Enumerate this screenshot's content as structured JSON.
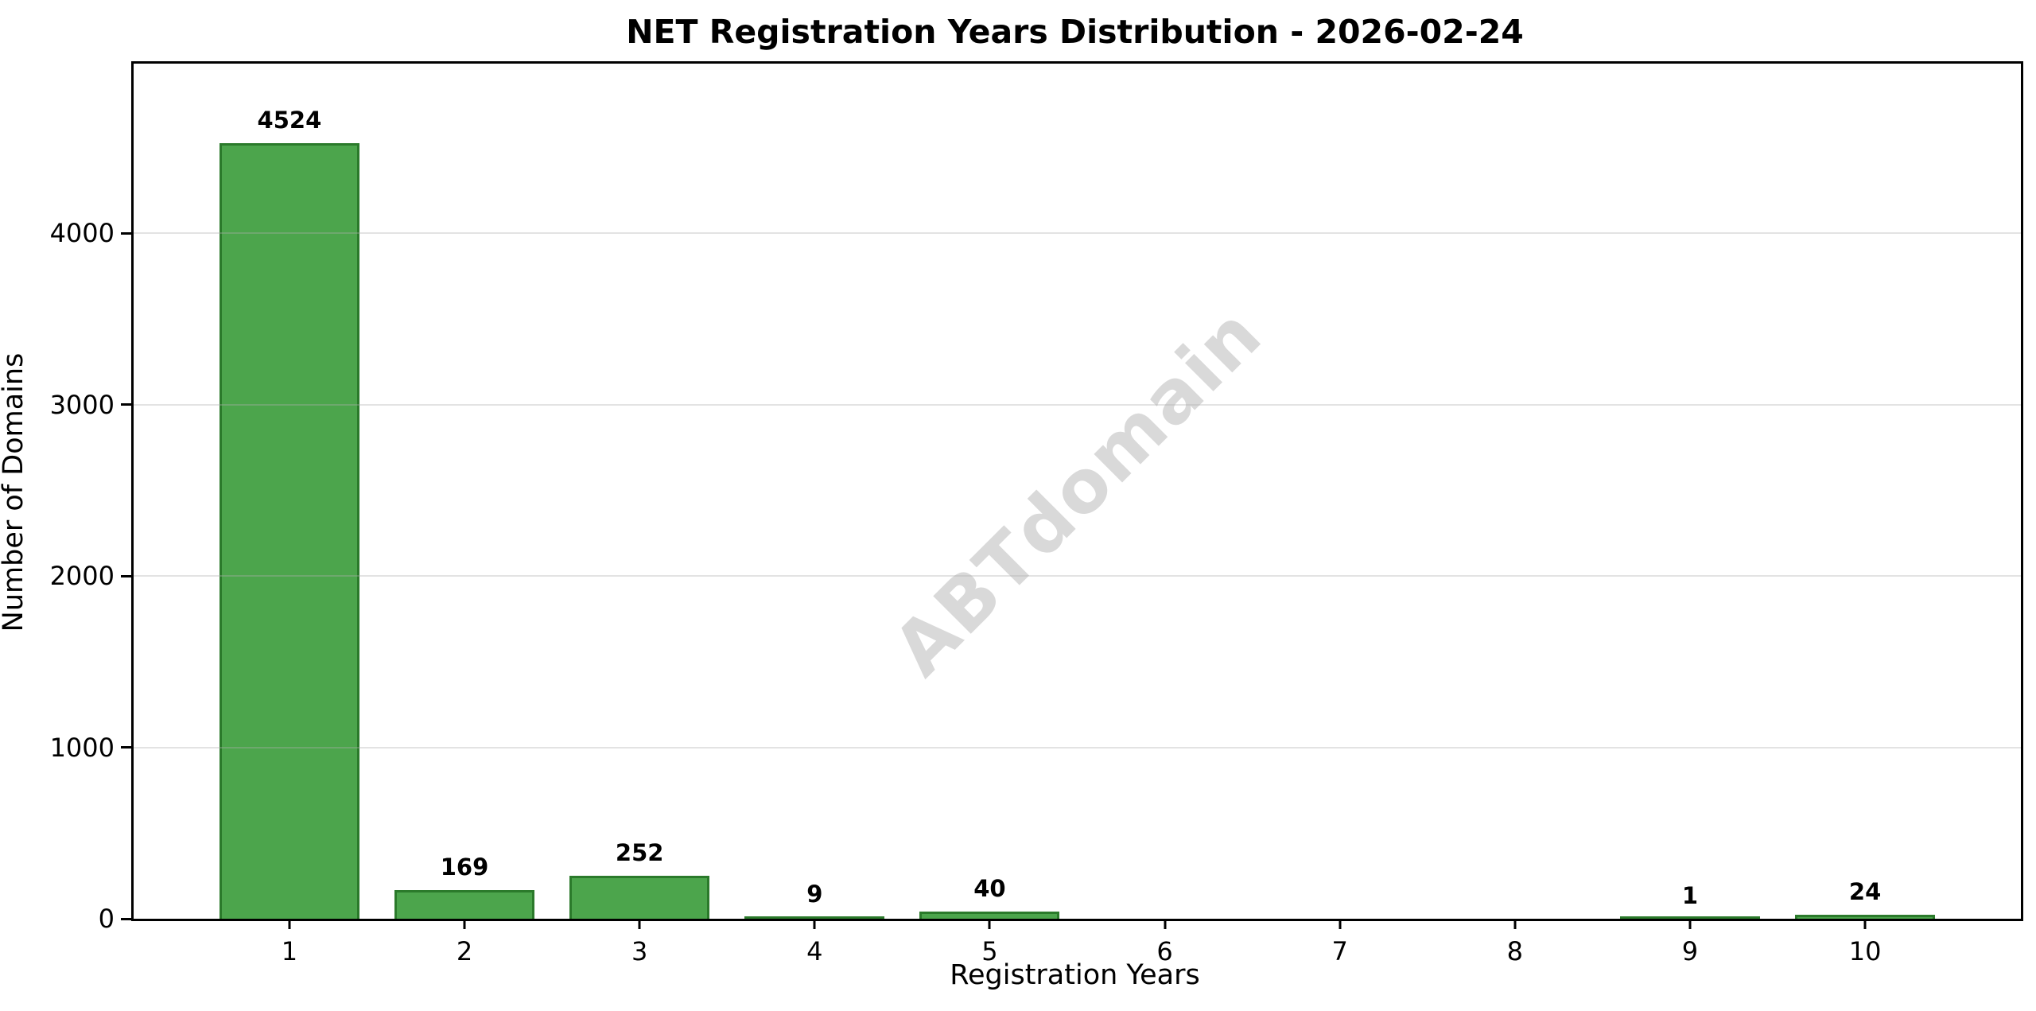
{
  "figure": {
    "title": "NET Registration Years Distribution - 2026-02-24",
    "watermark": "ABTdomain"
  },
  "chart_data": {
    "type": "bar",
    "title": "NET Registration Years Distribution - 2026-02-24",
    "xlabel": "Registration Years",
    "ylabel": "Number of Domains",
    "categories": [
      "1",
      "2",
      "3",
      "4",
      "5",
      "6",
      "7",
      "8",
      "9",
      "10"
    ],
    "values": [
      4524,
      169,
      252,
      9,
      40,
      0,
      0,
      0,
      1,
      24
    ],
    "bar_labels": [
      "4524",
      "169",
      "252",
      "9",
      "40",
      "",
      "",
      "",
      "1",
      "24"
    ],
    "yticks": [
      0,
      1000,
      2000,
      3000,
      4000
    ],
    "ytick_labels": [
      "0",
      "1000",
      "2000",
      "3000",
      "4000"
    ],
    "ylim": [
      0,
      4990
    ],
    "xlim": [
      0.11,
      10.89
    ],
    "bar_width_units": 0.8,
    "grid": true,
    "legend": "none",
    "bar_color": "#4ca54c",
    "bar_edge_color": "#2b7a2b",
    "grid_color": "#b0b0b0",
    "watermark_color": "#d9d9d9"
  }
}
